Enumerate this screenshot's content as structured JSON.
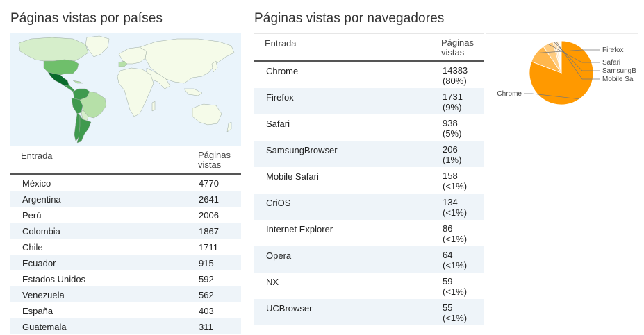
{
  "countries_panel": {
    "title": "Páginas vistas por países",
    "map": {
      "colors": {
        "ocean": "#eaf4fb",
        "land": "#f5fbe9",
        "border": "#9aa9a0",
        "darkest": "#0a6b2c",
        "dark": "#3f9a4e",
        "medium": "#6fbf6b",
        "light": "#b6e0a8",
        "lightest": "#d6eecb"
      }
    },
    "table": {
      "header": {
        "col1": "Entrada",
        "col2_line1": "Páginas",
        "col2_line2": "vistas"
      },
      "rows": [
        {
          "name": "México",
          "value": "4770"
        },
        {
          "name": "Argentina",
          "value": "2641"
        },
        {
          "name": "Perú",
          "value": "2006"
        },
        {
          "name": "Colombia",
          "value": "1867"
        },
        {
          "name": "Chile",
          "value": "1711"
        },
        {
          "name": "Ecuador",
          "value": "915"
        },
        {
          "name": "Estados Unidos",
          "value": "592"
        },
        {
          "name": "Venezuela",
          "value": "562"
        },
        {
          "name": "España",
          "value": "403"
        },
        {
          "name": "Guatemala",
          "value": "311"
        }
      ]
    }
  },
  "browsers_panel": {
    "title": "Páginas vistas por navegadores",
    "table": {
      "header": {
        "col1": "Entrada",
        "col2_line1": "Páginas",
        "col2_line2": "vistas"
      },
      "rows": [
        {
          "name": "Chrome",
          "value": "14383",
          "pct": "(80%)"
        },
        {
          "name": "Firefox",
          "value": "1731",
          "pct": "(9%)"
        },
        {
          "name": "Safari",
          "value": "938",
          "pct": "(5%)"
        },
        {
          "name": "SamsungBrowser",
          "value": "206",
          "pct": "(1%)"
        },
        {
          "name": "Mobile Safari",
          "value": "158",
          "pct": "(<1%)"
        },
        {
          "name": "CriOS",
          "value": "134",
          "pct": "(<1%)"
        },
        {
          "name": "Internet Explorer",
          "value": "86",
          "pct": "(<1%)"
        },
        {
          "name": "Opera",
          "value": "64",
          "pct": "(<1%)"
        },
        {
          "name": "NX",
          "value": "59",
          "pct": "(<1%)"
        },
        {
          "name": "UCBrowser",
          "value": "55",
          "pct": "(<1%)"
        }
      ]
    },
    "pie": {
      "labels": [
        "Firefox",
        "Safari",
        "SamsungB",
        "Mobile Sa",
        "Chrome"
      ],
      "colors": {
        "main": "#ff9900",
        "slice_light": "#ffb74d",
        "slice_lighter": "#ffcc80",
        "slice_lightest": "#ffe0b2",
        "label": "#444444",
        "leader": "#777777"
      }
    }
  },
  "chart_data": {
    "type": "pie",
    "categories": [
      "Chrome",
      "Firefox",
      "Safari",
      "SamsungBrowser",
      "Mobile Safari",
      "CriOS",
      "Internet Explorer",
      "Opera",
      "NX",
      "UCBrowser"
    ],
    "values": [
      14383,
      1731,
      938,
      206,
      158,
      134,
      86,
      64,
      59,
      55
    ],
    "title": "Páginas vistas por navegadores",
    "legend": "labels-outside"
  }
}
